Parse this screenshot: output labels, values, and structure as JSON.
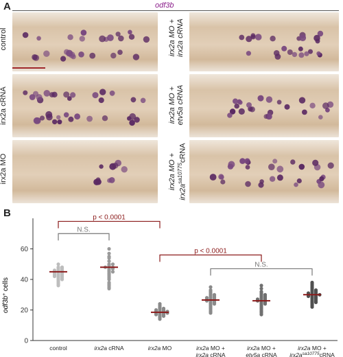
{
  "panel_a": {
    "letter": "A",
    "gene_title": "odf3b",
    "left_labels": [
      "control",
      "irx2a cRNA",
      "irx2a MO"
    ],
    "right_labels": [
      [
        "irx2a MO +",
        "irx2a cRNA"
      ],
      [
        "irx2a MO +",
        "etv5a cRNA"
      ],
      [
        "irx2a MO +",
        "irx2a",
        "sa10775",
        "cRNA"
      ]
    ]
  },
  "panel_b": {
    "letter": "B"
  },
  "chart_data": {
    "type": "scatter",
    "ylabel": "odf3b+ cells",
    "ylim": [
      0,
      70
    ],
    "yticks": [
      0,
      20,
      40,
      60
    ],
    "categories": [
      "control",
      "irx2a cRNA",
      "irx2a MO",
      "irx2a MO + irx2a cRNA",
      "etv5a cRNA",
      "irx2a sa10775 cRNA"
    ],
    "category_labels": [
      {
        "line1": [
          [
            "control",
            false
          ]
        ],
        "line2": []
      },
      {
        "line1": [
          [
            "irx2a",
            true
          ],
          [
            " cRNA",
            false
          ]
        ],
        "line2": []
      },
      {
        "line1": [
          [
            "irx2a",
            true
          ],
          [
            " MO",
            false
          ]
        ],
        "line2": []
      },
      {
        "line1": [
          [
            "irx2a",
            true
          ],
          [
            " MO +",
            false
          ]
        ],
        "line2": [
          [
            "irx2a",
            true
          ],
          [
            " cRNA",
            false
          ]
        ]
      },
      {
        "line1": [
          [
            "irx2a",
            true
          ],
          [
            " MO +",
            false
          ]
        ],
        "line2": [
          [
            "etv5a",
            true
          ],
          [
            " cRNA",
            false
          ]
        ]
      },
      {
        "line1": [
          [
            "irx2a",
            true
          ],
          [
            " MO +",
            false
          ]
        ],
        "line2": [
          [
            "irx2a",
            true
          ],
          [
            "sa10775",
            true,
            "sup"
          ],
          [
            "cRNA",
            false
          ]
        ]
      }
    ],
    "means": [
      45,
      48,
      18.5,
      26.5,
      26,
      30
    ],
    "colors": [
      "#bdbdbd",
      "#9a9a9a",
      "#8a8a8a",
      "#8a8a8a",
      "#707070",
      "#505050"
    ],
    "mean_color": "#8b1a1a",
    "points": [
      [
        50,
        48,
        47,
        46,
        46,
        45,
        45,
        44,
        44,
        43,
        43,
        42,
        42,
        41,
        40,
        40,
        39,
        38,
        37,
        36,
        48,
        47,
        46,
        45,
        44,
        43,
        42,
        41
      ],
      [
        60,
        57,
        55,
        54,
        52,
        50,
        49,
        48,
        48,
        47,
        46,
        45,
        45,
        44,
        43,
        42,
        41,
        40,
        38,
        37,
        36,
        35,
        34,
        50,
        48,
        47
      ],
      [
        24,
        23,
        22,
        21,
        21,
        20,
        20,
        19,
        19,
        19,
        18,
        18,
        18,
        17,
        17,
        16,
        16,
        15,
        14,
        20,
        19,
        18,
        17
      ],
      [
        35,
        33,
        32,
        31,
        30,
        30,
        29,
        29,
        28,
        28,
        27,
        27,
        26,
        26,
        25,
        25,
        24,
        24,
        23,
        22,
        21,
        20,
        19,
        18,
        28,
        27,
        26
      ],
      [
        36,
        34,
        32,
        31,
        30,
        30,
        29,
        29,
        28,
        28,
        27,
        27,
        26,
        26,
        25,
        25,
        24,
        24,
        23,
        22,
        21,
        20,
        19,
        18,
        17,
        27,
        26
      ],
      [
        38,
        37,
        36,
        35,
        34,
        33,
        33,
        32,
        32,
        31,
        31,
        30,
        30,
        30,
        29,
        29,
        28,
        28,
        27,
        27,
        26,
        26,
        25,
        25,
        24,
        23,
        22,
        31,
        30,
        29
      ]
    ],
    "comparisons": [
      {
        "label": "N.S.",
        "from": 0,
        "to": 1,
        "y": 70,
        "color": "#777777"
      },
      {
        "label": "p < 0.0001",
        "from": 0,
        "to": 2,
        "y": 78,
        "color": "#8b1a1a"
      },
      {
        "label": "p < 0.0001",
        "from": 2,
        "to": 4,
        "y": 56,
        "color": "#8b1a1a"
      },
      {
        "label": "N.S.",
        "from": 3,
        "to": 5,
        "y": 47,
        "color": "#777777"
      }
    ]
  }
}
